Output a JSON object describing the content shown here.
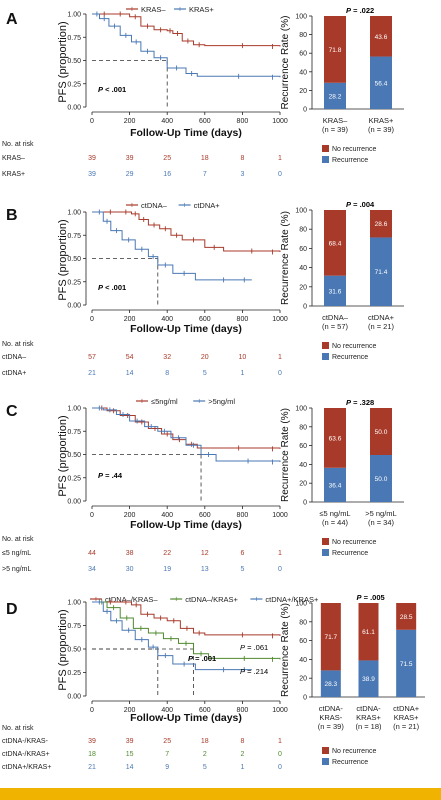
{
  "colors": {
    "red": "#a83a2a",
    "blue": "#4a78b4",
    "green": "#4f8a2e",
    "gold": "#f0b300"
  },
  "common": {
    "ylabel": "PFS (proportion)",
    "xlabel": "Follow-Up Time (days)",
    "bar_ylabel": "Recurrence Rate (%)",
    "risk_title": "No. at risk",
    "bar_legend": [
      "No recurrence",
      "Recurrence"
    ]
  },
  "chart_data": [
    {
      "type": "line",
      "panel": "A",
      "legend": [
        "KRAS–",
        "KRAS+"
      ],
      "pvalue": "P < .001",
      "xlim": [
        0,
        1000
      ],
      "ylim": [
        0,
        1
      ],
      "xticks": [
        "0",
        "200",
        "400",
        "600",
        "800",
        "1000"
      ],
      "yticks": [
        "0.00",
        "0.25",
        "0.50",
        "0.75",
        "1.00"
      ],
      "median_lines": [
        400
      ],
      "series": [
        {
          "name": "KRAS–",
          "color": "red",
          "x": [
            0,
            100,
            200,
            260,
            330,
            400,
            430,
            480,
            540,
            600,
            1000
          ],
          "y": [
            1,
            1,
            0.97,
            0.87,
            0.83,
            0.82,
            0.79,
            0.71,
            0.67,
            0.66,
            0.65
          ]
        },
        {
          "name": "KRAS+",
          "color": "blue",
          "x": [
            0,
            40,
            90,
            150,
            210,
            260,
            330,
            400,
            500,
            560,
            1000
          ],
          "y": [
            1,
            0.95,
            0.87,
            0.77,
            0.7,
            0.6,
            0.53,
            0.42,
            0.36,
            0.33,
            0.32
          ]
        }
      ],
      "risk_rows": [
        {
          "label": "KRAS–",
          "color": "red",
          "values": [
            "39",
            "39",
            "25",
            "18",
            "8",
            "1"
          ]
        },
        {
          "label": "KRAS+",
          "color": "blue",
          "values": [
            "39",
            "29",
            "16",
            "7",
            "3",
            "0"
          ]
        }
      ],
      "bar": {
        "pvalue": "P = .022",
        "categories": [
          "KRAS–\n(n = 39)",
          "KRAS+\n(n = 39)"
        ],
        "no_recurrence": [
          71.8,
          43.6
        ],
        "recurrence": [
          28.2,
          56.4
        ]
      }
    },
    {
      "type": "line",
      "panel": "B",
      "legend": [
        "ctDNA–",
        "ctDNA+"
      ],
      "pvalue": "P < .001",
      "xlim": [
        0,
        1000
      ],
      "ylim": [
        0,
        1
      ],
      "xticks": [
        "0",
        "200",
        "400",
        "600",
        "800",
        "1000"
      ],
      "yticks": [
        "0.00",
        "0.25",
        "0.50",
        "0.75",
        "1.00"
      ],
      "median_lines": [
        350
      ],
      "series": [
        {
          "name": "ctDNA–",
          "color": "red",
          "x": [
            0,
            150,
            210,
            250,
            300,
            360,
            420,
            480,
            600,
            700,
            1000
          ],
          "y": [
            1,
            1,
            0.98,
            0.92,
            0.86,
            0.82,
            0.75,
            0.7,
            0.62,
            0.58,
            0.57
          ]
        },
        {
          "name": "ctDNA+",
          "color": "blue",
          "x": [
            0,
            60,
            100,
            160,
            230,
            300,
            350,
            430,
            550,
            850
          ],
          "y": [
            1,
            0.9,
            0.8,
            0.7,
            0.6,
            0.52,
            0.43,
            0.34,
            0.27,
            0.27
          ]
        }
      ],
      "risk_rows": [
        {
          "label": "ctDNA–",
          "color": "red",
          "values": [
            "57",
            "54",
            "32",
            "20",
            "10",
            "1"
          ]
        },
        {
          "label": "ctDNA+",
          "color": "blue",
          "values": [
            "21",
            "14",
            "8",
            "5",
            "1",
            "0"
          ]
        }
      ],
      "bar": {
        "pvalue": "P = .004",
        "categories": [
          "ctDNA–\n(n = 57)",
          "ctDNA+\n(n = 21)"
        ],
        "no_recurrence": [
          68.4,
          28.6
        ],
        "recurrence": [
          31.6,
          71.4
        ]
      }
    },
    {
      "type": "line",
      "panel": "C",
      "legend": [
        "≤5ng/ml",
        ">5ng/ml"
      ],
      "pvalue": "P = .44",
      "xlim": [
        0,
        1000
      ],
      "ylim": [
        0,
        1
      ],
      "xticks": [
        "0",
        "200",
        "400",
        "600",
        "800",
        "1000"
      ],
      "yticks": [
        "0.00",
        "0.25",
        "0.50",
        "0.75",
        "1.00"
      ],
      "median_lines": [
        580
      ],
      "series": [
        {
          "name": "≤5ng/ml",
          "color": "red",
          "x": [
            0,
            80,
            150,
            230,
            300,
            370,
            430,
            500,
            560,
            1000
          ],
          "y": [
            1,
            0.97,
            0.92,
            0.85,
            0.78,
            0.72,
            0.66,
            0.61,
            0.57,
            0.56
          ]
        },
        {
          "name": ">5ng/ml",
          "color": "blue",
          "x": [
            0,
            60,
            130,
            200,
            280,
            350,
            420,
            500,
            580,
            660,
            1000
          ],
          "y": [
            1,
            0.98,
            0.93,
            0.86,
            0.8,
            0.75,
            0.68,
            0.6,
            0.5,
            0.43,
            0.42
          ]
        }
      ],
      "risk_rows": [
        {
          "label": "≤5 ng/mL",
          "color": "red",
          "values": [
            "44",
            "38",
            "22",
            "12",
            "6",
            "1"
          ]
        },
        {
          "label": ">5 ng/mL",
          "color": "blue",
          "values": [
            "34",
            "30",
            "19",
            "13",
            "5",
            "0"
          ]
        }
      ],
      "bar": {
        "pvalue": "P = .328",
        "categories": [
          "≤5 ng/mL\n(n = 44)",
          ">5 ng/mL\n(n = 34)"
        ],
        "no_recurrence": [
          63.6,
          50.0
        ],
        "recurrence": [
          36.4,
          50.0
        ]
      }
    },
    {
      "type": "line",
      "panel": "D",
      "legend": [
        "ctDNA–/KRAS–",
        "ctDNA–/KRAS+",
        "ctDNA+/KRAS+"
      ],
      "pvalue": "P = .001",
      "pairwise": [
        "P = .061",
        "P = .214"
      ],
      "xlim": [
        0,
        1000
      ],
      "ylim": [
        0,
        1
      ],
      "xticks": [
        "0",
        "200",
        "400",
        "600",
        "800",
        "1000"
      ],
      "yticks": [
        "0.00",
        "0.25",
        "0.50",
        "0.75",
        "1.00"
      ],
      "median_lines": [
        350,
        540
      ],
      "series": [
        {
          "name": "ctDNA–/KRAS–",
          "color": "red",
          "x": [
            0,
            150,
            210,
            260,
            330,
            400,
            470,
            540,
            600,
            1000
          ],
          "y": [
            1,
            1,
            0.97,
            0.87,
            0.83,
            0.8,
            0.72,
            0.67,
            0.65,
            0.64
          ]
        },
        {
          "name": "ctDNA–/KRAS+",
          "color": "green",
          "x": [
            0,
            80,
            150,
            220,
            300,
            380,
            460,
            540,
            620,
            1000
          ],
          "y": [
            1,
            0.94,
            0.83,
            0.72,
            0.67,
            0.61,
            0.56,
            0.45,
            0.4,
            0.39
          ]
        },
        {
          "name": "ctDNA+/KRAS+",
          "color": "blue",
          "x": [
            0,
            60,
            100,
            160,
            230,
            300,
            350,
            430,
            550,
            850
          ],
          "y": [
            1,
            0.9,
            0.8,
            0.7,
            0.6,
            0.52,
            0.43,
            0.34,
            0.28,
            0.28
          ]
        }
      ],
      "risk_rows": [
        {
          "label": "ctDNA-/KRAS-",
          "color": "red",
          "values": [
            "39",
            "39",
            "25",
            "18",
            "8",
            "1"
          ]
        },
        {
          "label": "ctDNA-/KRAS+",
          "color": "green",
          "values": [
            "18",
            "15",
            "7",
            "2",
            "2",
            "0"
          ]
        },
        {
          "label": "ctDNA+/KRAS+",
          "color": "blue",
          "values": [
            "21",
            "14",
            "9",
            "5",
            "1",
            "0"
          ]
        }
      ],
      "bar": {
        "pvalue": "P = .005",
        "categories": [
          "ctDNA-\nKRAS-\n(n = 39)",
          "ctDNA-\nKRAS+\n(n = 18)",
          "ctDNA+\nKRAS+\n(n = 21)"
        ],
        "no_recurrence": [
          71.7,
          61.1,
          28.5
        ],
        "recurrence": [
          28.3,
          38.9,
          71.5
        ]
      }
    }
  ]
}
